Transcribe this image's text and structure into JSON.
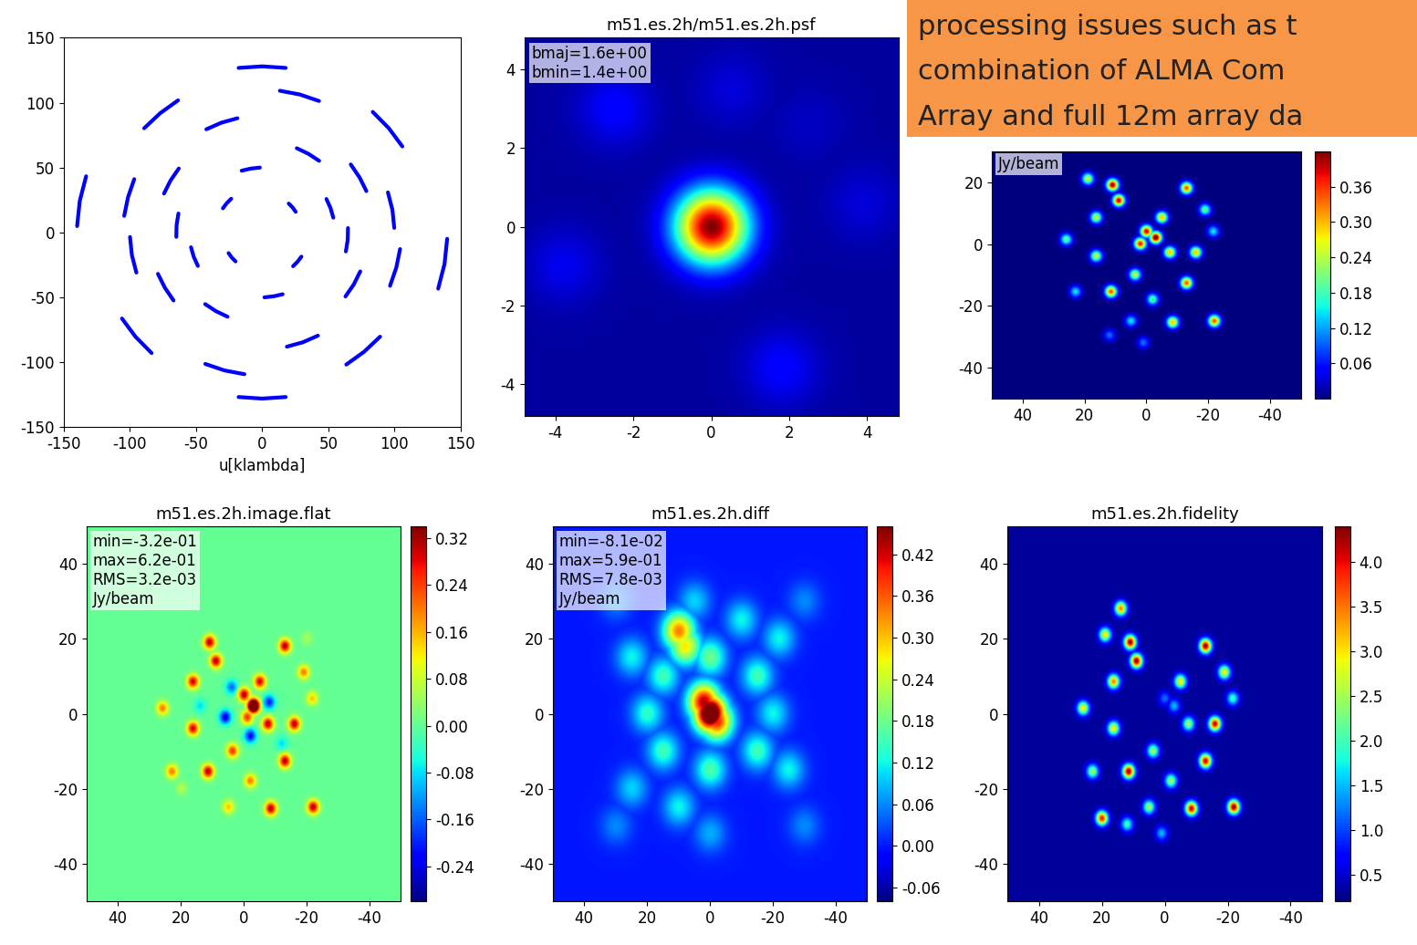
{
  "chart_data": [
    {
      "type": "line",
      "x_label": "u[klambda]",
      "xlim": [
        -150,
        150
      ],
      "ylim": [
        -150,
        150
      ],
      "xticks": [
        -150,
        -100,
        -50,
        0,
        50,
        100,
        150
      ],
      "yticks": [
        -150,
        -100,
        -50,
        0,
        50,
        100,
        150
      ],
      "series": [
        {
          "color": "#0000ff",
          "x": [
            17.8,
            0,
            -17.8,
            null,
            -133.1,
            -137.9,
            -139.9,
            null,
            -63.6,
            -77.1,
            -89.2,
            null,
            106.0,
            95.8,
            83.6,
            null,
            99.9,
            98.5,
            95.1,
            null,
            -18.7,
            -30.8,
            -42.2,
            null,
            -63.0,
            -69.3,
            -74.2,
            null,
            43.1,
            35.0,
            26.2,
            null,
            53.8,
            51.7,
            48.6,
            null,
            -1.7,
            -8.7,
            -15.5,
            null,
            -23.4,
            -26.8,
            -29.7,
            null,
            25.4,
            23.0,
            20.1,
            null,
            43.0,
            28.5,
            13.4,
            null,
            -96.7,
            -101.4,
            -104.3,
            null,
            -63.3,
            -64.7,
            -64.9,
            null,
            78.8,
            73.6,
            67.0,
            null,
            -17.8,
            0,
            17.8,
            null,
            133.1,
            137.9,
            139.9,
            null,
            63.6,
            77.1,
            89.2,
            null,
            -106.0,
            -95.8,
            -83.6,
            null,
            -99.9,
            -98.5,
            -95.1,
            null,
            18.7,
            30.8,
            42.2,
            null,
            63.0,
            69.3,
            74.2,
            null,
            -43.1,
            -35.0,
            -26.2,
            null,
            -53.8,
            -51.7,
            -48.6,
            null,
            1.7,
            8.7,
            15.5,
            null,
            23.4,
            26.8,
            29.7,
            null,
            -25.4,
            -23.0,
            -20.1,
            null,
            -43.0,
            -28.5,
            -13.4,
            null,
            96.7,
            101.4,
            104.3,
            null,
            63.3,
            64.7,
            64.9,
            null,
            -78.8,
            -73.6,
            -67.0
          ],
          "y": [
            126.8,
            128,
            126.8,
            null,
            43.3,
            24.3,
            4.9,
            null,
            101.8,
            91.9,
            80.3,
            null,
            66.3,
            80.3,
            92.9,
            null,
            3.5,
            17.4,
            30.9,
            null,
            88.0,
            84.6,
            79.5,
            null,
            49.3,
            40.0,
            30.0,
            null,
            55.2,
            60.6,
            64.9,
            null,
            11.4,
            18.8,
            25.8,
            null,
            50.0,
            49.2,
            47.6,
            null,
            26.0,
            22.5,
            18.6,
            null,
            15.9,
            19.3,
            22.3,
            null,
            101.3,
            106.3,
            109.2,
            null,
            41.1,
            27.2,
            12.8,
            null,
            14.6,
            5.7,
            -3.4,
            null,
            31.9,
            42.5,
            52.4,
            null,
            -126.8,
            -128,
            -126.8,
            null,
            -43.3,
            -24.3,
            -4.9,
            null,
            -101.8,
            -91.9,
            -80.3,
            null,
            -66.3,
            -80.3,
            -92.9,
            null,
            -3.5,
            -17.4,
            -30.9,
            null,
            -88.0,
            -84.6,
            -79.5,
            null,
            -49.3,
            -40.0,
            -30.0,
            null,
            -55.2,
            -60.6,
            -64.9,
            null,
            -11.4,
            -18.8,
            -25.8,
            null,
            -50.0,
            -49.2,
            -47.6,
            null,
            -26.0,
            -22.5,
            -18.6,
            null,
            -15.9,
            -19.3,
            -22.3,
            null,
            -101.3,
            -106.3,
            -109.2,
            null,
            -41.1,
            -27.2,
            -12.8,
            null,
            -14.6,
            -5.7,
            3.4,
            null,
            -31.9,
            -42.5,
            -52.4
          ]
        }
      ]
    },
    {
      "type": "heatmap",
      "title": "m51.es.2h/m51.es.2h.psf",
      "annotation": "bmaj=1.6e+00\nbmin=1.4e+00",
      "xlim": [
        -4.8,
        4.8
      ],
      "ylim": [
        -4.8,
        4.8
      ],
      "xticks": [
        -4,
        -2,
        0,
        2,
        4
      ],
      "yticks": [
        -4,
        -2,
        0,
        2,
        4
      ],
      "background_value": 0.03,
      "color_range": [
        0,
        1.0
      ],
      "sources": [
        [
          -2.5,
          3,
          0.12
        ],
        [
          1.8,
          -3.6,
          0.12
        ],
        [
          -3.8,
          -1,
          0.1
        ],
        [
          3.9,
          0.6,
          0.08
        ],
        [
          0.5,
          3.5,
          0.08
        ],
        [
          2.5,
          2.6,
          0.06
        ],
        [
          0,
          0,
          1.0
        ]
      ]
    },
    {
      "type": "heatmap",
      "annotation": "Jy/beam",
      "xlim": [
        50,
        -50
      ],
      "ylim": [
        -50,
        30
      ],
      "xticks": [
        40,
        20,
        0,
        -20,
        -40
      ],
      "yticks": [
        -40,
        -20,
        0,
        20
      ],
      "background_value": 0,
      "color_range": [
        0,
        0.42
      ],
      "colorbar": {
        "ticks": [
          0.06,
          0.12,
          0.18,
          0.24,
          {
            "value": 0.3,
            "label": "0.30"
          },
          0.36
        ]
      },
      "sources": [
        [
          -21.7,
          4,
          0.15
        ],
        [
          23,
          -15.5,
          0.15
        ],
        [
          12,
          -29.6,
          0.1
        ],
        [
          1,
          -32,
          0.1
        ],
        [
          5,
          -25,
          0.15
        ],
        [
          26,
          1.4,
          0.2
        ],
        [
          -19,
          11,
          0.2
        ],
        [
          -2,
          -18,
          0.2
        ],
        [
          3.7,
          -10,
          0.25
        ],
        [
          16.3,
          -4,
          0.25
        ],
        [
          16.3,
          8.5,
          0.25
        ],
        [
          19,
          21,
          0.25
        ],
        [
          -5,
          8.5,
          0.3
        ],
        [
          -7.6,
          -2.8,
          0.3
        ],
        [
          -16,
          -2.8,
          0.3
        ],
        [
          -8.5,
          -25.4,
          0.3
        ],
        [
          -13,
          18,
          0.35
        ],
        [
          -13,
          -12.7,
          0.35
        ],
        [
          11.5,
          -15.5,
          0.35
        ],
        [
          -22,
          -25,
          0.35
        ],
        [
          9,
          14,
          0.4
        ],
        [
          11,
          19,
          0.42
        ],
        [
          -3,
          2,
          0.45
        ],
        [
          0,
          4,
          0.4
        ],
        [
          2,
          0,
          0.38
        ]
      ]
    },
    {
      "type": "heatmap",
      "title": "m51.es.2h.image.flat",
      "annotation": "min=-3.2e-01\nmax=6.2e-01\nRMS=3.2e-03\nJy/beam",
      "xlim": [
        50,
        -50
      ],
      "ylim": [
        -50,
        50
      ],
      "xticks": [
        40,
        20,
        0,
        -20,
        -40
      ],
      "yticks": [
        -40,
        -20,
        0,
        20,
        40
      ],
      "background_value": 0,
      "color_range": [
        -0.3,
        0.34
      ],
      "colorbar": {
        "ticks": [
          -0.24,
          -0.16,
          -0.08,
          {
            "value": 0,
            "label": "0.00"
          },
          0.08,
          0.16,
          0.24,
          0.32
        ]
      },
      "sources": [
        [
          6,
          -1,
          -0.24
        ],
        [
          -2,
          -6,
          -0.22
        ],
        [
          -8,
          3,
          -0.2
        ],
        [
          4,
          7,
          -0.15
        ],
        [
          14,
          2,
          -0.08
        ],
        [
          -12,
          -8,
          -0.08
        ],
        [
          20,
          -20,
          0.06
        ],
        [
          -20,
          20,
          0.05
        ],
        [
          -21.7,
          4,
          0.15
        ],
        [
          23,
          -15.5,
          0.2
        ],
        [
          5,
          -25,
          0.15
        ],
        [
          26,
          1.4,
          0.2
        ],
        [
          -19,
          11,
          0.2
        ],
        [
          -2,
          -18,
          0.2
        ],
        [
          3.7,
          -10,
          0.25
        ],
        [
          16.3,
          -4,
          0.3
        ],
        [
          16.3,
          8.5,
          0.3
        ],
        [
          -5,
          8.5,
          0.3
        ],
        [
          -7.6,
          -2.8,
          0.32
        ],
        [
          -16,
          -2.8,
          0.32
        ],
        [
          -8.5,
          -25.4,
          0.32
        ],
        [
          -13,
          18,
          0.32
        ],
        [
          -13,
          -12.7,
          0.32
        ],
        [
          11.5,
          -15.5,
          0.32
        ],
        [
          -22,
          -25,
          0.32
        ],
        [
          9,
          14,
          0.32
        ],
        [
          11,
          19,
          0.32
        ],
        [
          -3,
          2,
          0.62
        ],
        [
          0,
          5,
          0.32
        ],
        [
          -1,
          -1,
          0.25
        ]
      ]
    },
    {
      "type": "heatmap",
      "title": "m51.es.2h.diff",
      "annotation": "min=-8.1e-02\nmax=5.9e-01\nRMS=7.8e-03\nJy/beam",
      "xlim": [
        50,
        -50
      ],
      "ylim": [
        -50,
        50
      ],
      "xticks": [
        40,
        20,
        0,
        -20,
        -40
      ],
      "yticks": [
        -40,
        -20,
        0,
        20,
        40
      ],
      "background_value": 0,
      "color_range": [
        -0.08,
        0.46
      ],
      "colorbar": {
        "ticks": [
          -0.06,
          {
            "value": 0,
            "label": "0.00"
          },
          0.06,
          0.12,
          0.18,
          0.24,
          {
            "value": 0.3,
            "label": "0.30"
          },
          0.36,
          0.42
        ]
      },
      "sources": [
        [
          -30,
          -30,
          0.06
        ],
        [
          30,
          30,
          0.06
        ],
        [
          30,
          -30,
          0.06
        ],
        [
          -30,
          30,
          0.06
        ],
        [
          25,
          15,
          0.12
        ],
        [
          -25,
          -15,
          0.12
        ],
        [
          10,
          -25,
          0.12
        ],
        [
          -10,
          25,
          0.12
        ],
        [
          25,
          -20,
          0.1
        ],
        [
          -22,
          20,
          0.12
        ],
        [
          5,
          30,
          0.1
        ],
        [
          0,
          -32,
          0.08
        ],
        [
          15,
          10,
          0.15
        ],
        [
          -15,
          10,
          0.15
        ],
        [
          15,
          -10,
          0.15
        ],
        [
          -15,
          -10,
          0.15
        ],
        [
          0,
          15,
          0.18
        ],
        [
          0,
          -15,
          0.16
        ],
        [
          20,
          0,
          0.14
        ],
        [
          -20,
          0,
          0.12
        ],
        [
          8,
          18,
          0.28
        ],
        [
          10,
          22,
          0.34
        ],
        [
          -2,
          -2,
          0.4
        ],
        [
          2,
          3,
          0.44
        ],
        [
          0,
          0,
          0.59
        ]
      ]
    },
    {
      "type": "heatmap",
      "title": "m51.es.2h.fidelity",
      "xlim": [
        50,
        -50
      ],
      "ylim": [
        -50,
        50
      ],
      "xticks": [
        40,
        20,
        0,
        -20,
        -40
      ],
      "yticks": [
        -40,
        -20,
        0,
        20,
        40
      ],
      "background_value": 0.3,
      "color_range": [
        0.2,
        4.4
      ],
      "colorbar": {
        "ticks": [
          0.5,
          1.0,
          1.5,
          2.0,
          2.5,
          3.0,
          3.5,
          4.0
        ]
      },
      "sources": [
        [
          -3,
          2,
          1.5
        ],
        [
          0,
          4,
          1.2
        ],
        [
          3.7,
          -10,
          2.5
        ],
        [
          -21.7,
          4,
          2
        ],
        [
          23,
          -15.5,
          2.5
        ],
        [
          12,
          -29.6,
          2
        ],
        [
          1,
          -32,
          1.5
        ],
        [
          5,
          -25,
          2.5
        ],
        [
          26,
          1.4,
          3
        ],
        [
          -19,
          11,
          3
        ],
        [
          -2,
          -18,
          2.5
        ],
        [
          16.3,
          -4,
          3
        ],
        [
          16.3,
          8.5,
          3.5
        ],
        [
          19,
          21,
          3
        ],
        [
          -5,
          8.5,
          3
        ],
        [
          -7.6,
          -2.8,
          2.5
        ],
        [
          -16,
          -2.8,
          4.2
        ],
        [
          -8.5,
          -25.4,
          4.2
        ],
        [
          -13,
          18,
          4.4
        ],
        [
          -13,
          -12.7,
          4.2
        ],
        [
          11.5,
          -15.5,
          4.4
        ],
        [
          -22,
          -25,
          4.4
        ],
        [
          9,
          14,
          4.4
        ],
        [
          11,
          19,
          4.4
        ],
        [
          14,
          28,
          3.5
        ],
        [
          20,
          -28,
          4.0
        ]
      ]
    }
  ],
  "note": {
    "lines": [
      "processing issues such as t",
      "combination of ALMA Com",
      "Array and full 12m array da"
    ]
  }
}
